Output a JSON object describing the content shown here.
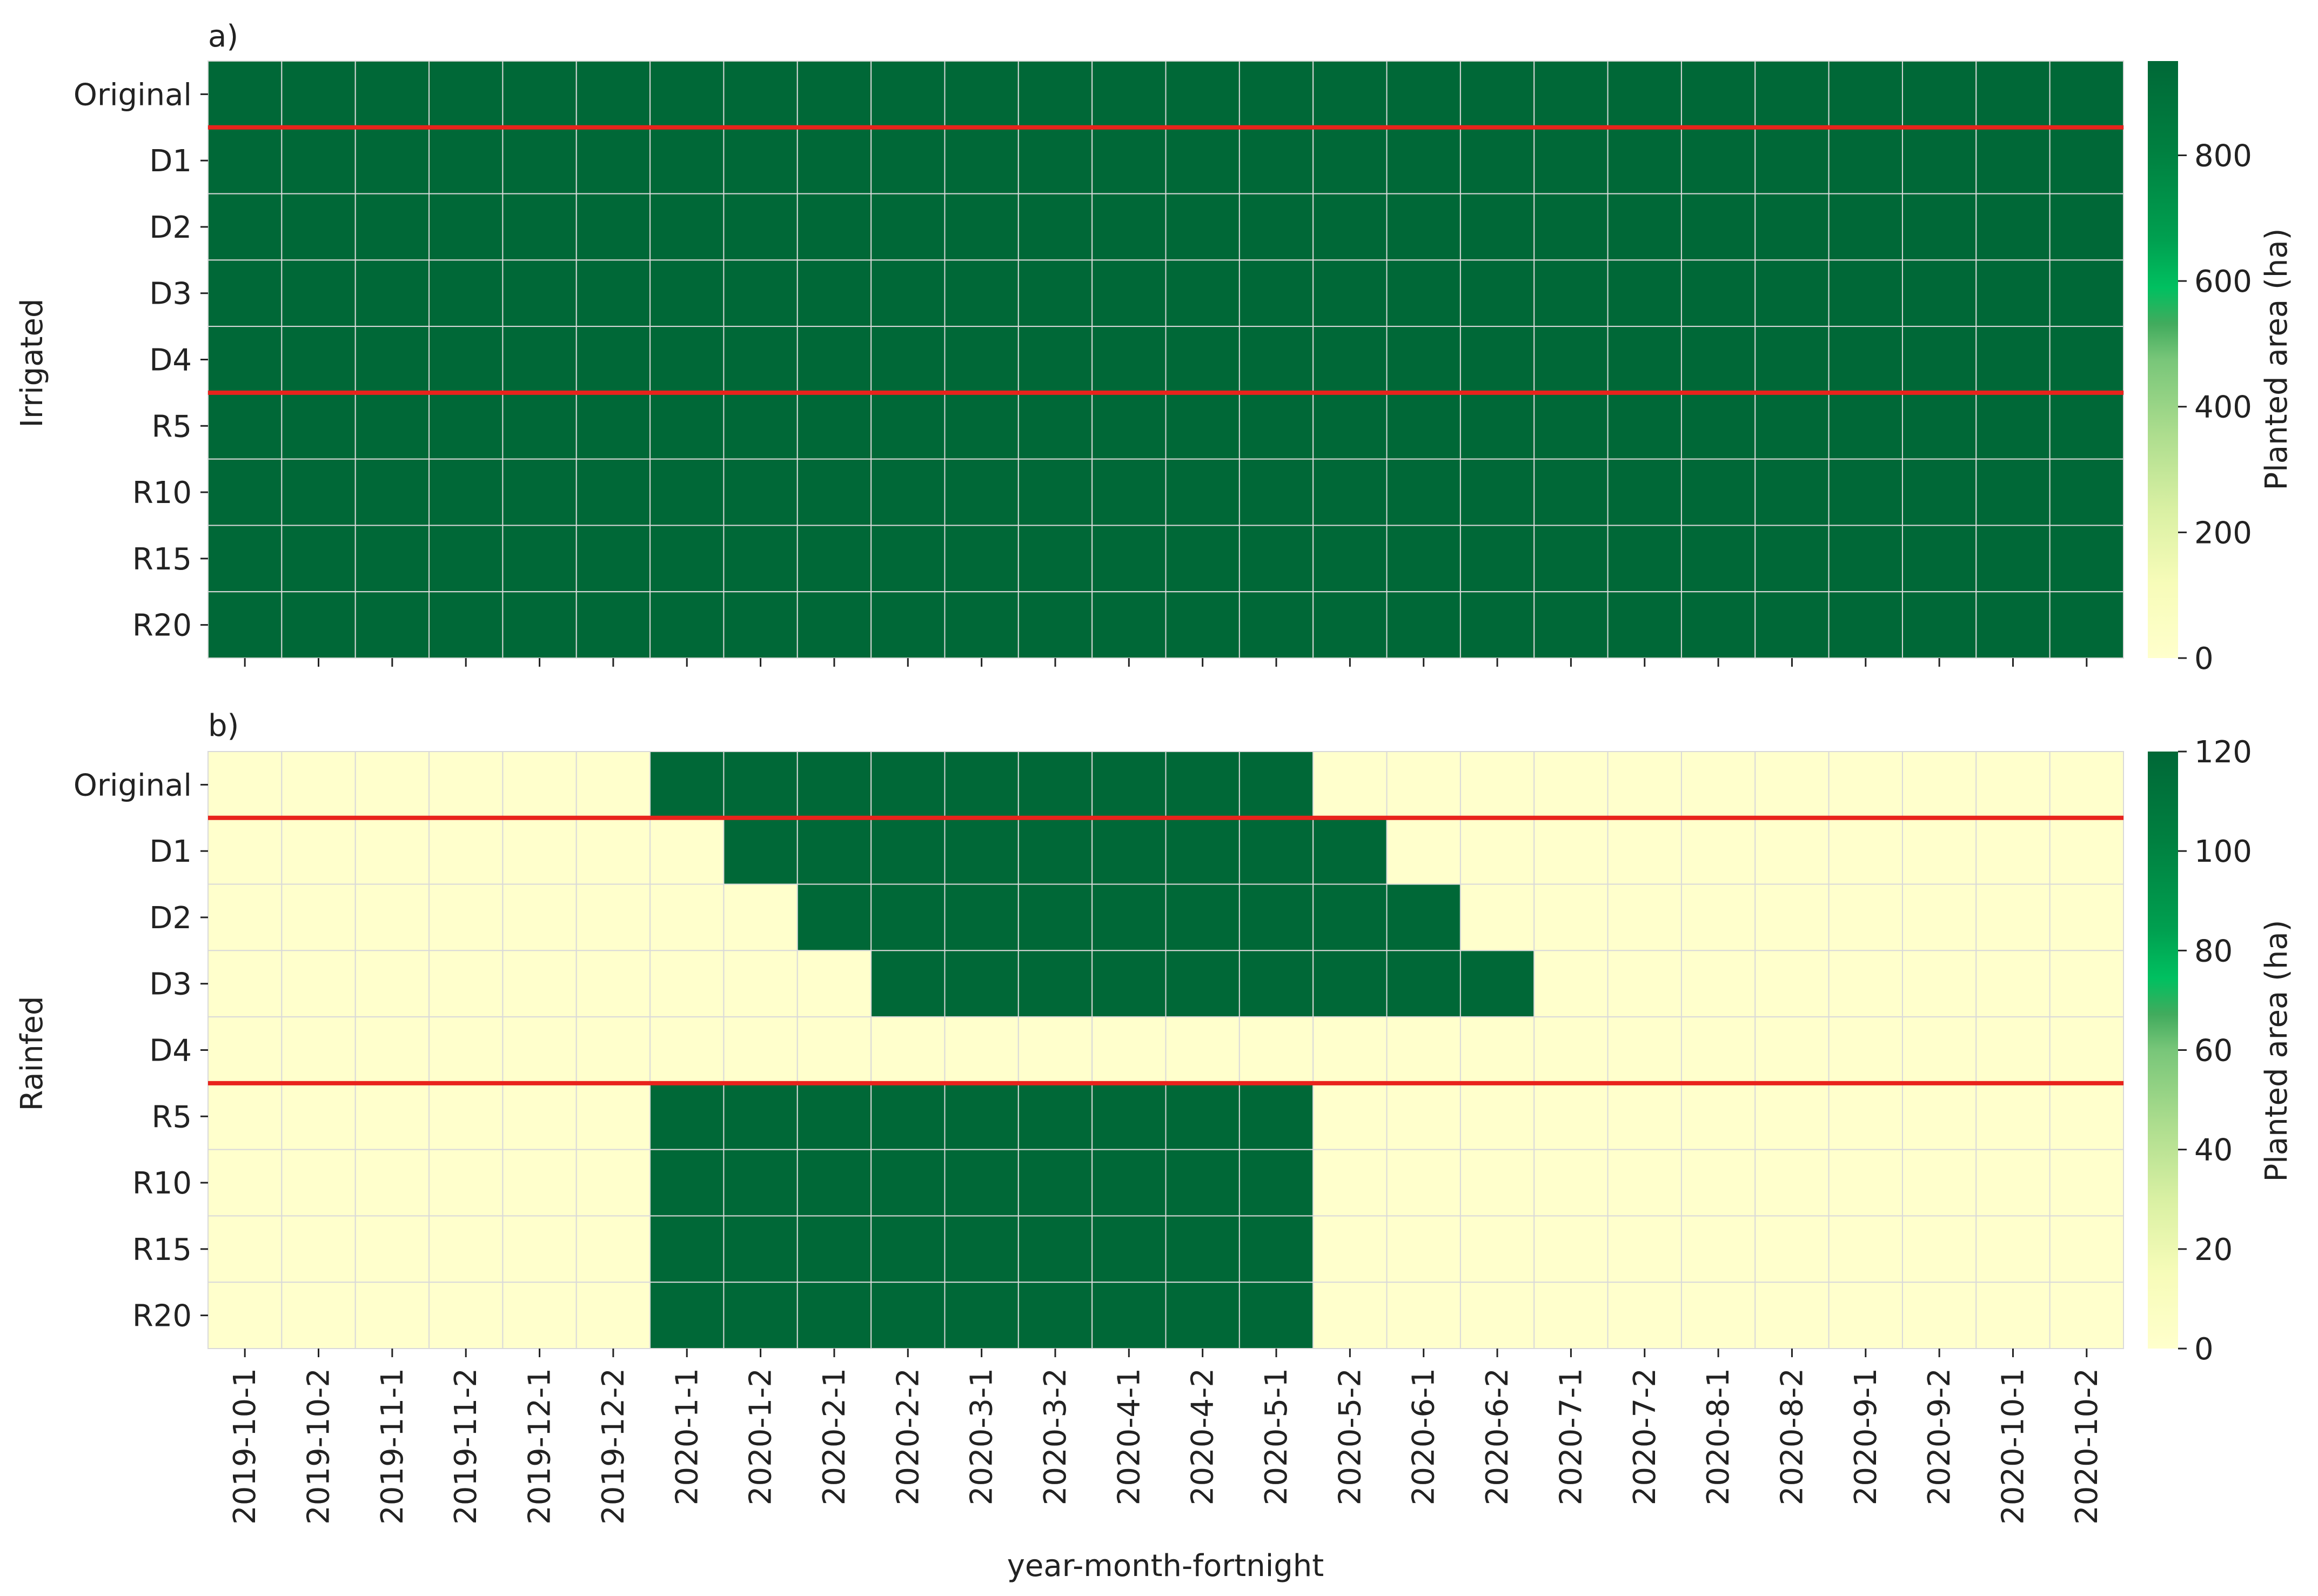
{
  "chart_data": [
    {
      "type": "heatmap",
      "panel_label": "a)",
      "ylabel": "Irrigated",
      "xlabel": "",
      "rows": [
        "Original",
        "D1",
        "D2",
        "D3",
        "D4",
        "R5",
        "R10",
        "R15",
        "R20"
      ],
      "columns": [
        "2019-10-1",
        "2019-10-2",
        "2019-11-1",
        "2019-11-2",
        "2019-12-1",
        "2019-12-2",
        "2020-1-1",
        "2020-1-2",
        "2020-2-1",
        "2020-2-2",
        "2020-3-1",
        "2020-3-2",
        "2020-4-1",
        "2020-4-2",
        "2020-5-1",
        "2020-5-2",
        "2020-6-1",
        "2020-6-2",
        "2020-7-1",
        "2020-7-2",
        "2020-8-1",
        "2020-8-2",
        "2020-9-1",
        "2020-9-2",
        "2020-10-1",
        "2020-10-2"
      ],
      "values": [
        [
          950,
          950,
          950,
          950,
          950,
          950,
          950,
          950,
          950,
          950,
          950,
          950,
          950,
          950,
          950,
          950,
          950,
          950,
          950,
          950,
          950,
          950,
          950,
          950,
          950,
          950
        ],
        [
          950,
          950,
          950,
          950,
          950,
          950,
          950,
          950,
          950,
          950,
          950,
          950,
          950,
          950,
          950,
          950,
          950,
          950,
          950,
          950,
          950,
          950,
          950,
          950,
          950,
          950
        ],
        [
          950,
          950,
          950,
          950,
          950,
          950,
          950,
          950,
          950,
          950,
          950,
          950,
          950,
          950,
          950,
          950,
          950,
          950,
          950,
          950,
          950,
          950,
          950,
          950,
          950,
          950
        ],
        [
          950,
          950,
          950,
          950,
          950,
          950,
          950,
          950,
          950,
          950,
          950,
          950,
          950,
          950,
          950,
          950,
          950,
          950,
          950,
          950,
          950,
          950,
          950,
          950,
          950,
          950
        ],
        [
          950,
          950,
          950,
          950,
          950,
          950,
          950,
          950,
          950,
          950,
          950,
          950,
          950,
          950,
          950,
          950,
          950,
          950,
          950,
          950,
          950,
          950,
          950,
          950,
          950,
          950
        ],
        [
          950,
          950,
          950,
          950,
          950,
          950,
          950,
          950,
          950,
          950,
          950,
          950,
          950,
          950,
          950,
          950,
          950,
          950,
          950,
          950,
          950,
          950,
          950,
          950,
          950,
          950
        ],
        [
          950,
          950,
          950,
          950,
          950,
          950,
          950,
          950,
          950,
          950,
          950,
          950,
          950,
          950,
          950,
          950,
          950,
          950,
          950,
          950,
          950,
          950,
          950,
          950,
          950,
          950
        ],
        [
          950,
          950,
          950,
          950,
          950,
          950,
          950,
          950,
          950,
          950,
          950,
          950,
          950,
          950,
          950,
          950,
          950,
          950,
          950,
          950,
          950,
          950,
          950,
          950,
          950,
          950
        ],
        [
          950,
          950,
          950,
          950,
          950,
          950,
          950,
          950,
          950,
          950,
          950,
          950,
          950,
          950,
          950,
          950,
          950,
          950,
          950,
          950,
          950,
          950,
          950,
          950,
          950,
          950
        ]
      ],
      "separator_after_rows": [
        "Original",
        "D4"
      ],
      "separator_color": "#e8231c",
      "colorbar": {
        "label": "Planted area (ha)",
        "range": [
          0,
          950
        ],
        "ticks": [
          0,
          200,
          400,
          600,
          800
        ],
        "tick_labels": [
          "0",
          "200",
          "400",
          "600",
          "800"
        ]
      }
    },
    {
      "type": "heatmap",
      "panel_label": "b)",
      "ylabel": "Rainfed",
      "xlabel": "year-month-fortnight",
      "rows": [
        "Original",
        "D1",
        "D2",
        "D3",
        "D4",
        "R5",
        "R10",
        "R15",
        "R20"
      ],
      "columns": [
        "2019-10-1",
        "2019-10-2",
        "2019-11-1",
        "2019-11-2",
        "2019-12-1",
        "2019-12-2",
        "2020-1-1",
        "2020-1-2",
        "2020-2-1",
        "2020-2-2",
        "2020-3-1",
        "2020-3-2",
        "2020-4-1",
        "2020-4-2",
        "2020-5-1",
        "2020-5-2",
        "2020-6-1",
        "2020-6-2",
        "2020-7-1",
        "2020-7-2",
        "2020-8-1",
        "2020-8-2",
        "2020-9-1",
        "2020-9-2",
        "2020-10-1",
        "2020-10-2"
      ],
      "values": [
        [
          0,
          0,
          0,
          0,
          0,
          0,
          120,
          120,
          120,
          120,
          120,
          120,
          120,
          120,
          120,
          0,
          0,
          0,
          0,
          0,
          0,
          0,
          0,
          0,
          0,
          0
        ],
        [
          0,
          0,
          0,
          0,
          0,
          0,
          0,
          120,
          120,
          120,
          120,
          120,
          120,
          120,
          120,
          120,
          0,
          0,
          0,
          0,
          0,
          0,
          0,
          0,
          0,
          0
        ],
        [
          0,
          0,
          0,
          0,
          0,
          0,
          0,
          0,
          120,
          120,
          120,
          120,
          120,
          120,
          120,
          120,
          120,
          0,
          0,
          0,
          0,
          0,
          0,
          0,
          0,
          0
        ],
        [
          0,
          0,
          0,
          0,
          0,
          0,
          0,
          0,
          0,
          120,
          120,
          120,
          120,
          120,
          120,
          120,
          120,
          120,
          0,
          0,
          0,
          0,
          0,
          0,
          0,
          0
        ],
        [
          0,
          0,
          0,
          0,
          0,
          0,
          0,
          0,
          0,
          0,
          0,
          0,
          0,
          0,
          0,
          0,
          0,
          0,
          0,
          0,
          0,
          0,
          0,
          0,
          0,
          0
        ],
        [
          0,
          0,
          0,
          0,
          0,
          0,
          120,
          120,
          120,
          120,
          120,
          120,
          120,
          120,
          120,
          0,
          0,
          0,
          0,
          0,
          0,
          0,
          0,
          0,
          0,
          0
        ],
        [
          0,
          0,
          0,
          0,
          0,
          0,
          120,
          120,
          120,
          120,
          120,
          120,
          120,
          120,
          120,
          0,
          0,
          0,
          0,
          0,
          0,
          0,
          0,
          0,
          0,
          0
        ],
        [
          0,
          0,
          0,
          0,
          0,
          0,
          120,
          120,
          120,
          120,
          120,
          120,
          120,
          120,
          120,
          0,
          0,
          0,
          0,
          0,
          0,
          0,
          0,
          0,
          0,
          0
        ],
        [
          0,
          0,
          0,
          0,
          0,
          0,
          120,
          120,
          120,
          120,
          120,
          120,
          120,
          120,
          120,
          0,
          0,
          0,
          0,
          0,
          0,
          0,
          0,
          0,
          0,
          0
        ]
      ],
      "separator_after_rows": [
        "Original",
        "D4"
      ],
      "separator_color": "#e8231c",
      "colorbar": {
        "label": "Planted area (ha)",
        "range": [
          0,
          120
        ],
        "ticks": [
          0,
          20,
          40,
          60,
          80,
          100,
          120
        ],
        "tick_labels": [
          "0",
          "20",
          "40",
          "60",
          "80",
          "100",
          "120"
        ]
      }
    }
  ],
  "colors": {
    "low": "#ffffcc",
    "high": "#006837",
    "grid_line": "#d9d9d9",
    "axis": "#222222"
  }
}
